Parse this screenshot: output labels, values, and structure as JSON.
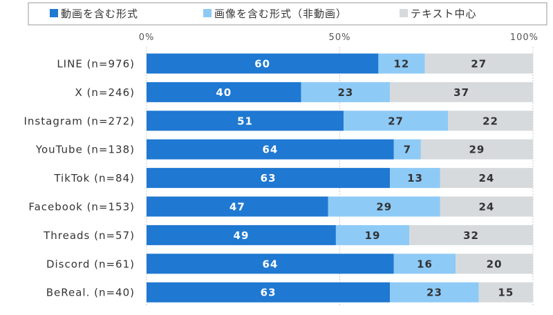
{
  "chart_data": {
    "type": "bar",
    "orientation": "horizontal",
    "stacked": true,
    "categories": [
      "LINE (n=976)",
      "X (n=246)",
      "Instagram (n=272)",
      "YouTube (n=138)",
      "TikTok (n=84)",
      "Facebook (n=153)",
      "Threads (n=57)",
      "Discord (n=61)",
      "BeReal. (n=40)"
    ],
    "series": [
      {
        "name": "動画を含む形式",
        "color": "#1f78d1",
        "label_color": "#ffffff",
        "values": [
          60,
          40,
          51,
          64,
          63,
          47,
          49,
          64,
          63
        ]
      },
      {
        "name": "画像を含む形式（非動画）",
        "color": "#8ecaf6",
        "label_color": "#333333",
        "values": [
          12,
          23,
          27,
          7,
          13,
          29,
          19,
          16,
          23
        ]
      },
      {
        "name": "テキスト中心",
        "color": "#d6dadd",
        "label_color": "#333333",
        "values": [
          27,
          37,
          22,
          29,
          24,
          24,
          32,
          20,
          15
        ]
      }
    ],
    "xlim": [
      0,
      100
    ],
    "x_ticks": [
      "0%",
      "50%",
      "100%"
    ],
    "grid": true,
    "legend_position": "top"
  }
}
